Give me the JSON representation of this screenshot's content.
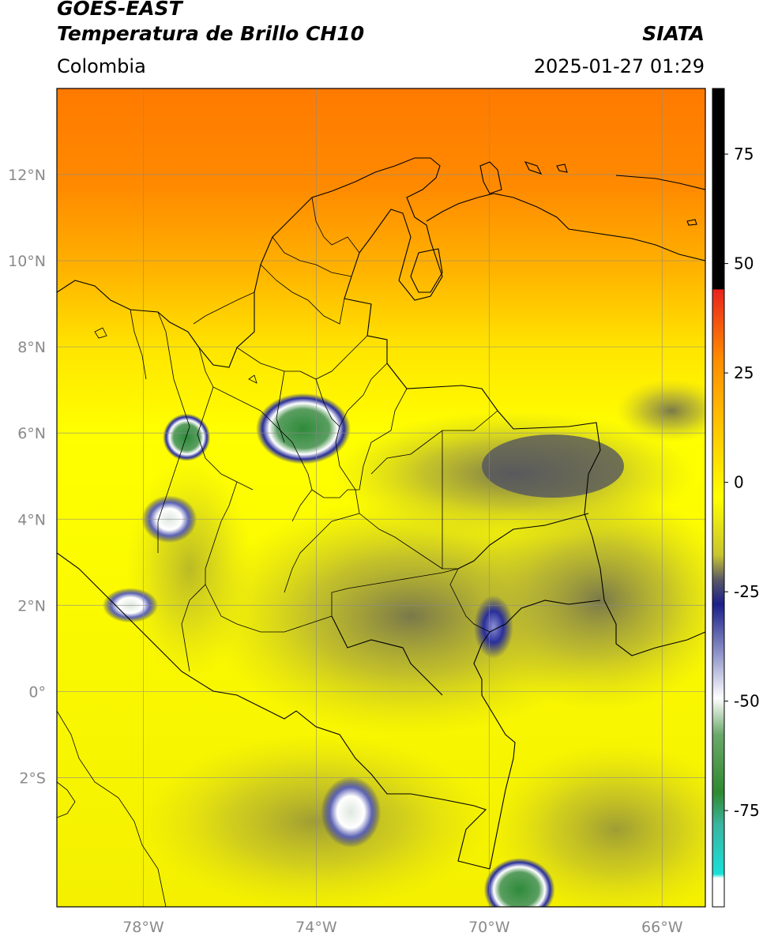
{
  "header": {
    "satellite": "GOES-EAST",
    "product": "Temperatura de Brillo CH10",
    "region": "Colombia",
    "agency": "SIATA",
    "datetime": "2025-01-27 01:29"
  },
  "map": {
    "lon_range": [
      -80,
      -65
    ],
    "lat_range": [
      -5,
      14
    ],
    "lon_ticks": [
      "78°W",
      "74°W",
      "70°W",
      "66°W"
    ],
    "lon_tick_values": [
      -78,
      -74,
      -70,
      -66
    ],
    "lat_ticks": [
      "12°N",
      "10°N",
      "8°N",
      "6°N",
      "4°N",
      "2°N",
      "0°",
      "2°S"
    ],
    "lat_tick_values": [
      12,
      10,
      8,
      6,
      4,
      2,
      0,
      -2
    ],
    "grid": true
  },
  "colorbar": {
    "ticks": [
      "75",
      "50",
      "25",
      "0",
      "-25",
      "-50",
      "-75"
    ],
    "tick_values": [
      75,
      50,
      25,
      0,
      -25,
      -50,
      -75
    ],
    "range": [
      -97,
      90
    ],
    "colors": {
      "black": "#000000",
      "red": "#e8231c",
      "orange": "#ff8c00",
      "yellow": "#ffff00",
      "olive": "#b5b23a",
      "dark-blue": "#1b1f8a",
      "white": "#ffffff",
      "green": "#2f8a2f",
      "cyan": "#19e0d8"
    }
  },
  "features": {
    "storms": [
      {
        "lon": -74.3,
        "lat": 6.1,
        "core": "green"
      },
      {
        "lon": -77.0,
        "lat": 5.9,
        "core": "green"
      },
      {
        "lon": -77.4,
        "lat": 4.0,
        "core": "white"
      },
      {
        "lon": -78.3,
        "lat": 2.0,
        "core": "white"
      },
      {
        "lon": -73.2,
        "lat": -2.8,
        "core": "white"
      },
      {
        "lon": -69.3,
        "lat": -4.6,
        "core": "green"
      },
      {
        "lon": -69.9,
        "lat": 1.5,
        "core": "blue"
      }
    ]
  }
}
